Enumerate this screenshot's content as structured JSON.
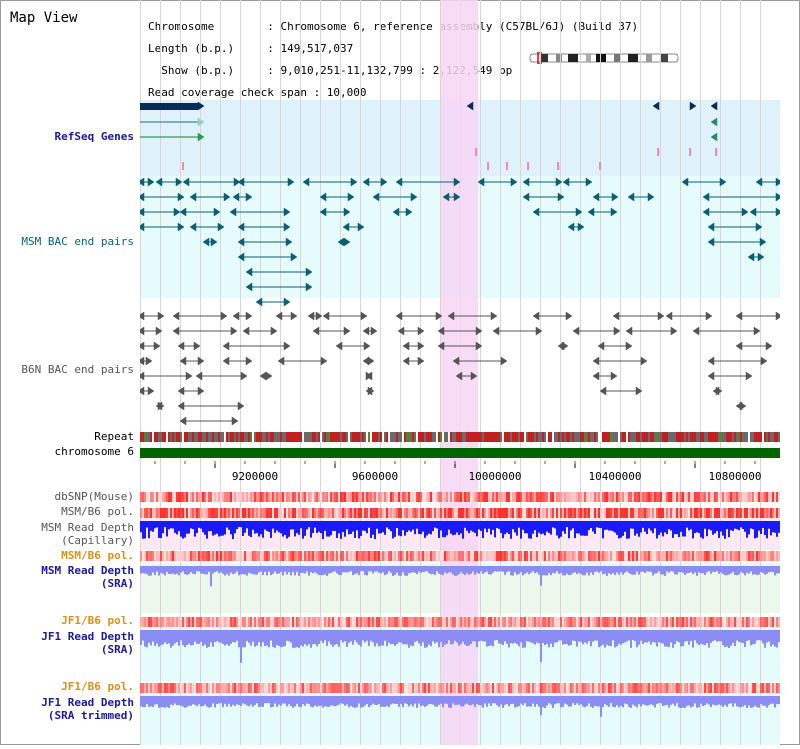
{
  "title": "Map View",
  "info": {
    "line1": "Chromosome        : Chromosome 6, reference assembly (C57BL/6J) (Build 37)",
    "line2": "Length (b.p.)     : 149,517,037",
    "line3": "  Show (b.p.)     : 9,010,251-11,132,799 : 2,122,549 bp",
    "line4": "Read coverage check span : 10,000"
  },
  "tracks": {
    "refseq": "RefSeq Genes",
    "msm_bac": "MSM BAC end pairs",
    "b6n_bac": "B6N BAC end pairs",
    "repeat": "Repeat",
    "chromosome": "chromosome 6",
    "dbsnp": "dbSNP(Mouse)",
    "msm_b6_pol_1": "MSM/B6 pol.",
    "msm_depth_cap_1": "MSM Read Depth",
    "msm_depth_cap_2": "(Capillary)",
    "msm_b6_pol_2": "MSM/B6 pol.",
    "msm_depth_sra_1": "MSM Read Depth",
    "msm_depth_sra_2": "(SRA)",
    "jf1_b6_pol_1": "JF1/B6 pol.",
    "jf1_depth_sra_1": "JF1 Read Depth",
    "jf1_depth_sra_2": "(SRA)",
    "jf1_b6_pol_2": "JF1/B6 pol.",
    "jf1_depth_trim_1": "JF1 Read Depth",
    "jf1_depth_trim_2": "(SRA trimmed)"
  },
  "ruler": {
    "ticks": [
      "9200000",
      "9600000",
      "10000000",
      "10400000",
      "10800000"
    ]
  },
  "colors": {
    "refseq_bg": "#dff2fb",
    "track_bg": "#e6fbfb",
    "highlight": "#f7d6f5",
    "msm_feature": "#0b5f75",
    "b6n_feature": "#555555",
    "chromosome_bar": "#006400",
    "depth_capillary": "#1a1aff",
    "depth_sra": "#8c8cf5",
    "snp_red": "#f08080"
  }
}
